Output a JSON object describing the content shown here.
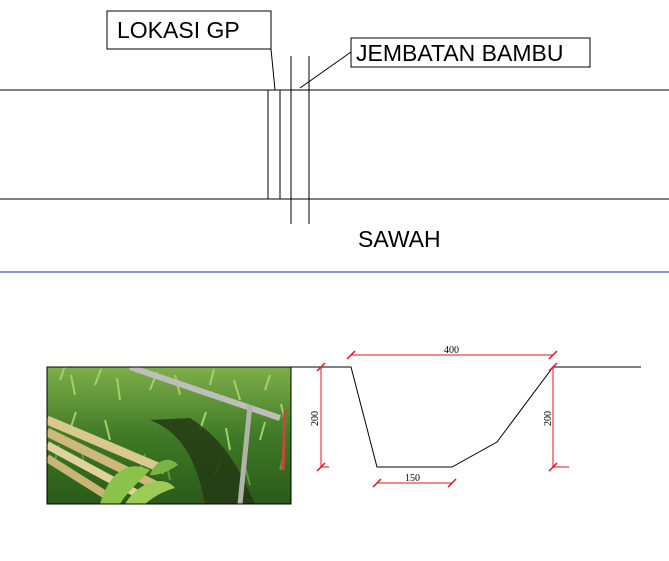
{
  "plan": {
    "label_lokasi": "LOKASI GP",
    "label_jembatan": "JEMBATAN BAMBU",
    "label_sawah": "SAWAH"
  },
  "section": {
    "dim_top_width": "400",
    "dim_bottom_width": "150",
    "dim_left_depth": "200",
    "dim_right_depth": "200"
  },
  "photo": {
    "subject": "bamboo-bridge-over-channel-in-grass"
  },
  "colors": {
    "divider": "#1f2fa0",
    "dimension": "#e0141e",
    "line": "#000000"
  }
}
